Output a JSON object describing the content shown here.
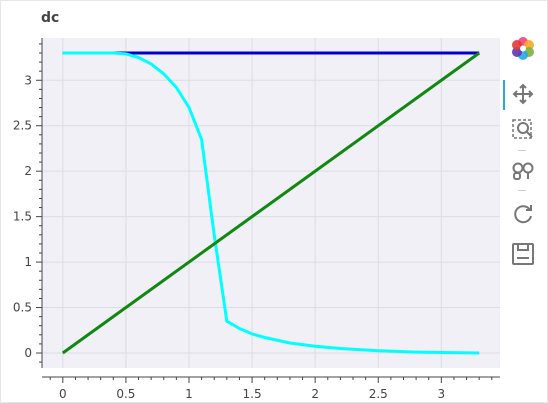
{
  "title": "dc",
  "toolbar": {
    "logo": "bokeh-logo-icon",
    "tools": [
      "pan-icon",
      "box-zoom-icon",
      "wheel-zoom-icon",
      "reset-icon",
      "save-icon"
    ],
    "active_tool": "pan-icon"
  },
  "colors": {
    "plot_bg": "#f0f0f6",
    "grid": "#dcdce4",
    "axis": "#444444",
    "active": "#26aae1"
  },
  "chart_data": {
    "type": "line",
    "title": "dc",
    "xlabel": "",
    "ylabel": "",
    "xlim": [
      -0.165,
      3.465
    ],
    "ylim": [
      -0.165,
      3.465
    ],
    "x_ticks": [
      0,
      0.5,
      1,
      1.5,
      2,
      2.5,
      3
    ],
    "x_tick_labels": [
      "0",
      "0.5",
      "1",
      "1.5",
      "2",
      "2.5",
      "3"
    ],
    "y_ticks": [
      0,
      0.5,
      1,
      1.5,
      2,
      2.5,
      3
    ],
    "y_tick_labels": [
      "0",
      "0.5",
      "1",
      "1.5",
      "2",
      "2.5",
      "3"
    ],
    "grid": true,
    "legend": "none",
    "series": [
      {
        "color": "#0000cd",
        "x": [
          0,
          0.5,
          1,
          1.5,
          2,
          2.5,
          3,
          3.3
        ],
        "y": [
          3.3,
          3.3,
          3.3,
          3.3,
          3.3,
          3.3,
          3.3,
          3.3
        ]
      },
      {
        "color": "#00ffff",
        "x": [
          0,
          0.4,
          0.5,
          0.6,
          0.7,
          0.8,
          0.9,
          1.0,
          1.1,
          1.2,
          1.3,
          1.4,
          1.5,
          1.6,
          1.8,
          2.0,
          2.2,
          2.5,
          2.8,
          3.0,
          3.3
        ],
        "y": [
          3.3,
          3.3,
          3.29,
          3.25,
          3.18,
          3.07,
          2.92,
          2.7,
          2.35,
          1.3,
          0.35,
          0.27,
          0.21,
          0.17,
          0.11,
          0.075,
          0.05,
          0.025,
          0.01,
          0.005,
          0.0
        ]
      },
      {
        "color": "#118811",
        "x": [
          0,
          3.3
        ],
        "y": [
          0,
          3.3
        ]
      }
    ]
  }
}
